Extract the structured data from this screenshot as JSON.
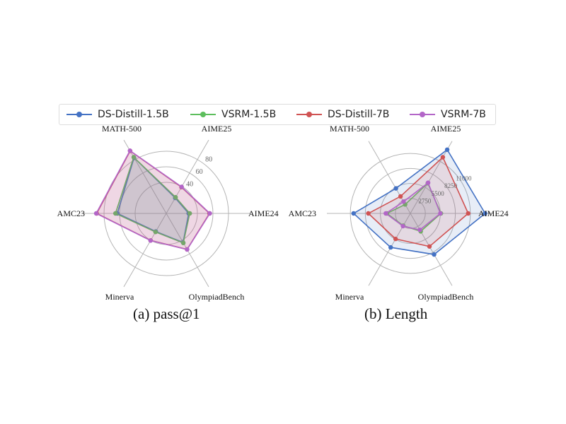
{
  "legend": [
    {
      "name": "DS-Distill-1.5B",
      "color": "#4472C4"
    },
    {
      "name": "VSRM-1.5B",
      "color": "#5DBE5D"
    },
    {
      "name": "DS-Distill-7B",
      "color": "#D05353"
    },
    {
      "name": "VSRM-7B",
      "color": "#B366C8"
    }
  ],
  "captions": {
    "a": "(a) pass@1",
    "b": "(b) Length"
  },
  "chart_data": [
    {
      "type": "radar",
      "caption": "(a) pass@1",
      "axes": [
        "AIME24",
        "AIME25",
        "MATH-500",
        "AMC23",
        "Minerva",
        "OlympiadBench"
      ],
      "range": [
        0,
        100
      ],
      "ticks": [
        40,
        60,
        80
      ],
      "series": [
        {
          "name": "DS-Distill-1.5B",
          "color": "#4472C4",
          "values": [
            28.8,
            23.0,
            82.8,
            62.9,
            26.9,
            43.3
          ]
        },
        {
          "name": "VSRM-1.5B",
          "color": "#5DBE5D",
          "values": [
            30.2,
            24.0,
            83.6,
            65.3,
            27.6,
            43.9
          ]
        },
        {
          "name": "DS-Distill-7B",
          "color": "#D05353",
          "values": [
            55.5,
            39.0,
            92.8,
            89.4,
            40.1,
            53.4
          ]
        },
        {
          "name": "VSRM-7B",
          "color": "#B366C8",
          "values": [
            56.0,
            39.5,
            93.2,
            90.0,
            40.3,
            53.6
          ]
        }
      ]
    },
    {
      "type": "radar",
      "caption": "(b) Length",
      "axes": [
        "AIME24",
        "AIME25",
        "MATH-500",
        "AMC23",
        "Minerva",
        "OlympiadBench"
      ],
      "range": [
        0,
        14000
      ],
      "ticks": [
        2750,
        5500,
        8250,
        11000
      ],
      "tick_labels": [
        "2750",
        "5500",
        "8250",
        "11000"
      ],
      "series": [
        {
          "name": "DS-Distill-1.5B",
          "color": "#4472C4",
          "values": [
            13700,
            13500,
            5300,
            10400,
            7200,
            8700
          ]
        },
        {
          "name": "VSRM-1.5B",
          "color": "#5DBE5D",
          "values": [
            5600,
            6400,
            1900,
            4300,
            2600,
            3800
          ]
        },
        {
          "name": "DS-Distill-7B",
          "color": "#D05353",
          "values": [
            10600,
            11900,
            3600,
            7700,
            5400,
            7000
          ]
        },
        {
          "name": "VSRM-7B",
          "color": "#B366C8",
          "values": [
            5500,
            6500,
            2500,
            4500,
            2700,
            3500
          ]
        }
      ]
    }
  ]
}
